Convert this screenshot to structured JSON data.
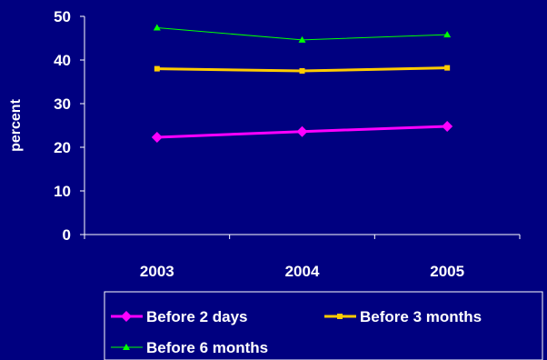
{
  "chart_data": {
    "type": "line",
    "categories": [
      "2003",
      "2004",
      "2005"
    ],
    "ylabel": "percent",
    "xlabel": "",
    "ylim": [
      0,
      50
    ],
    "yticks": [
      0,
      10,
      20,
      30,
      40,
      50
    ],
    "grid": false,
    "legend_position": "bottom",
    "background_color": "#000080",
    "text_color": "#ffffff",
    "series": [
      {
        "name": "Before 2 days",
        "values": [
          22.3,
          23.6,
          24.8
        ],
        "color": "#ff00ff",
        "marker": "diamond"
      },
      {
        "name": "Before 3 months",
        "values": [
          38.0,
          37.5,
          38.2
        ],
        "color": "#ffcc00",
        "marker": "square"
      },
      {
        "name": "Before 6 months",
        "values": [
          47.4,
          44.6,
          45.8
        ],
        "color": "#00ff00",
        "marker": "triangle"
      }
    ]
  }
}
